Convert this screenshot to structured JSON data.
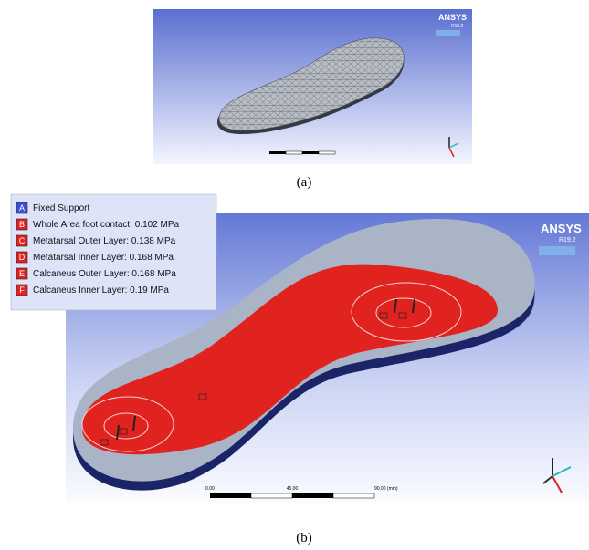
{
  "panel_a": {
    "logo": "ANSYS",
    "version": "R19.2",
    "caption": "(a)"
  },
  "panel_b": {
    "logo": "ANSYS",
    "version": "R19.2",
    "caption": "(b)",
    "legend": [
      {
        "key": "A",
        "label": "Fixed Support",
        "color": "#3b4fd8"
      },
      {
        "key": "B",
        "label": "Whole Area foot contact: 0.102 MPa",
        "color": "#e0231f"
      },
      {
        "key": "C",
        "label": "Metatarsal Outer Layer: 0.138 MPa",
        "color": "#e0231f"
      },
      {
        "key": "D",
        "label": "Metatarsal Inner Layer: 0.168 MPa",
        "color": "#e0231f"
      },
      {
        "key": "E",
        "label": "Calcaneus Outer Layer: 0.168 MPa",
        "color": "#e0231f"
      },
      {
        "key": "F",
        "label": "Calcaneus Inner Layer: 0.19 MPa",
        "color": "#e0231f"
      }
    ],
    "scale_labels": [
      "0.00",
      "45.00",
      "90.00 (mm)"
    ]
  }
}
